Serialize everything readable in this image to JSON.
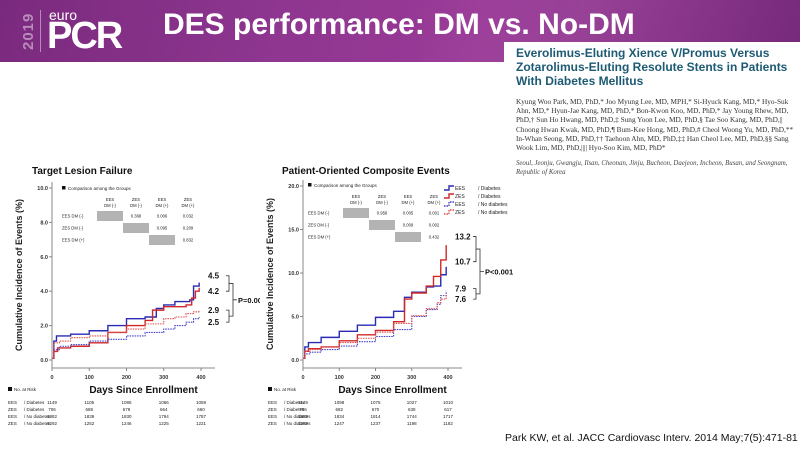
{
  "header": {
    "year": "2019",
    "logo_small": "euro",
    "logo_big": "PCR",
    "title": "DES performance: DM vs. No-DM",
    "brand_color": "#8a3490"
  },
  "paper": {
    "title": "Everolimus-Eluting Xience V/Promus Versus Zotarolimus-Eluting Resolute Stents in Patients With Diabetes Mellitus",
    "authors": "Kyung Woo Park, MD, PhD,* Joo Myung Lee, MD, MPH,* Si-Hyuck Kang, MD,* Hyo-Suk Ahn, MD,* Hyun-Jae Kang, MD, PhD,* Bon-Kwon Koo, MD, PhD,* Jay Young Rhew, MD, PhD,† Sun Ho Hwang, MD, PhD,‡ Sung Yoon Lee, MD, PhD,§ Tae Soo Kang, MD, PhD,|| Choong Hwan Kwak, MD, PhD,¶ Bum-Kee Hong, MD, PhD,# Cheol Woong Yu, MD, PhD,** In-Whan Seong, MD, PhD,†† Taehoon Ahn, MD, PhD,‡‡ Han Cheol Lee, MD, PhD,§§ Sang Wook Lim, MD, PhD,|||| Hyo-Soo Kim, MD, PhD*",
    "affiliation": "Seoul, Jeonju, Gwangju, Ilsan, Cheonan, Jinju, Bucheon, Daejeon, Incheon, Busan, and Seongnam, Republic of Korea"
  },
  "citation": "Park KW, et al. JACC Cardiovasc Interv. 2014 May;7(5):471-81",
  "chart_data": [
    {
      "type": "line",
      "title": "Target Lesion Failure",
      "xlabel": "Days Since Enrollment",
      "ylabel": "Cumulative Incidence of Events (%)",
      "xlim": [
        0,
        400
      ],
      "ylim": [
        0,
        10
      ],
      "x_ticks": [
        "0",
        "100",
        "200",
        "300",
        "400"
      ],
      "y_ticks": [
        "0.0",
        "2.0",
        "4.0",
        "6.0",
        "8.0",
        "10.0"
      ],
      "y_tick_values": [
        0,
        2,
        4,
        6,
        8,
        10
      ],
      "series": [
        {
          "name": "EES / Diabetes",
          "color": "#2a2ab4",
          "dashed": false,
          "x": [
            0,
            5,
            12,
            50,
            100,
            150,
            200,
            250,
            280,
            300,
            330,
            350,
            370,
            380,
            395
          ],
          "y": [
            0.1,
            1.1,
            1.4,
            1.5,
            1.7,
            2.0,
            2.4,
            2.5,
            3.0,
            3.2,
            3.4,
            3.4,
            3.5,
            4.3,
            4.5
          ]
        },
        {
          "name": "ZES / Diabetes",
          "color": "#d02828",
          "dashed": false,
          "x": [
            0,
            5,
            15,
            50,
            100,
            150,
            200,
            250,
            270,
            300,
            330,
            360,
            375,
            385,
            395
          ],
          "y": [
            0.1,
            0.5,
            0.7,
            0.8,
            1.0,
            1.6,
            2.0,
            2.3,
            2.9,
            3.1,
            3.1,
            3.2,
            3.6,
            4.0,
            4.2
          ]
        },
        {
          "name": "EES / No diabetes",
          "color": "#4040c8",
          "dashed": true,
          "x": [
            0,
            5,
            20,
            50,
            100,
            150,
            200,
            250,
            300,
            330,
            360,
            380,
            395
          ],
          "y": [
            0.1,
            0.6,
            0.8,
            0.9,
            1.1,
            1.2,
            1.4,
            1.6,
            1.8,
            2.0,
            2.2,
            2.4,
            2.5
          ]
        },
        {
          "name": "ZES / No diabetes",
          "color": "#e05050",
          "dashed": true,
          "x": [
            0,
            5,
            20,
            50,
            100,
            150,
            200,
            250,
            300,
            330,
            360,
            380,
            395
          ],
          "y": [
            0.1,
            1.0,
            1.1,
            1.3,
            1.4,
            1.6,
            1.8,
            2.1,
            2.4,
            2.5,
            2.7,
            2.8,
            2.9
          ]
        }
      ],
      "end_labels": [
        "4.5",
        "4.2",
        "2.9",
        "2.5"
      ],
      "p_value": "P=0.004",
      "comparison": {
        "title": "Comparison among the Groups",
        "col_headers": [
          [
            "EES",
            "DM (-)"
          ],
          [
            "ZES",
            "DM (-)"
          ],
          [
            "EES",
            "DM (+)"
          ],
          [
            "ZES",
            "DM (+)"
          ]
        ],
        "rows": [
          {
            "label": "EES DM (-)",
            "values": [
              "",
              "0.368",
              "0.006",
              "0.032"
            ]
          },
          {
            "label": "ZES DM (-)",
            "values": [
              "",
              "",
              "0.095",
              "0.209"
            ]
          },
          {
            "label": "EES DM (+)",
            "values": [
              "",
              "",
              "",
              "0.832"
            ]
          }
        ]
      },
      "risk_table": {
        "title": "No. at Risk",
        "rows": [
          {
            "stent": "EES",
            "group": "/ Diabetes",
            "values": [
              "1149",
              "1105",
              "1095",
              "1066",
              "1059"
            ]
          },
          {
            "stent": "ZES",
            "group": "/ Diabetes",
            "values": [
              "706",
              "688",
              "679",
              "664",
              "660"
            ]
          },
          {
            "stent": "EES",
            "group": "/ No diabetes",
            "values": [
              "1882",
              "1839",
              "1830",
              "1794",
              "1787"
            ]
          },
          {
            "stent": "ZES",
            "group": "/ No diabetes",
            "values": [
              "1292",
              "1252",
              "1246",
              "1225",
              "1221"
            ]
          }
        ]
      }
    },
    {
      "type": "line",
      "title": "Patient-Oriented Composite Events",
      "xlabel": "Days Since Enrollment",
      "ylabel": "Cumulative Incidence of Events (%)",
      "xlim": [
        0,
        400
      ],
      "ylim": [
        0,
        20
      ],
      "x_ticks": [
        "0",
        "100",
        "200",
        "300",
        "400"
      ],
      "y_ticks": [
        "0.0",
        "5.0",
        "10.0",
        "15.0",
        "20.0"
      ],
      "y_tick_values": [
        0,
        5,
        10,
        15,
        20
      ],
      "legend": {
        "position": "top-right",
        "entries": [
          "EES / Diabetes",
          "ZES / Diabetes",
          "EES / No diabetes",
          "ZES / No diabetes"
        ]
      },
      "series": [
        {
          "name": "EES / Diabetes",
          "color": "#2a2ab4",
          "dashed": false,
          "x": [
            0,
            5,
            15,
            50,
            100,
            150,
            200,
            250,
            280,
            300,
            340,
            360,
            380,
            395
          ],
          "y": [
            0.2,
            1.5,
            2.0,
            2.6,
            3.3,
            4.0,
            4.9,
            5.6,
            7.2,
            7.8,
            8.4,
            8.5,
            9.8,
            10.7
          ]
        },
        {
          "name": "ZES / Diabetes",
          "color": "#d02828",
          "dashed": false,
          "x": [
            0,
            5,
            15,
            50,
            100,
            150,
            200,
            250,
            280,
            300,
            340,
            360,
            380,
            395
          ],
          "y": [
            0.2,
            1.0,
            1.3,
            1.5,
            2.2,
            2.9,
            3.4,
            4.4,
            7.0,
            7.7,
            8.5,
            9.6,
            11.5,
            13.2
          ]
        },
        {
          "name": "EES / No diabetes",
          "color": "#4040c8",
          "dashed": true,
          "x": [
            0,
            5,
            20,
            50,
            100,
            150,
            200,
            250,
            300,
            340,
            370,
            380,
            395
          ],
          "y": [
            0.2,
            0.7,
            0.9,
            1.2,
            1.6,
            2.1,
            2.7,
            3.5,
            5.0,
            5.8,
            6.4,
            7.4,
            7.9
          ]
        },
        {
          "name": "ZES / No diabetes",
          "color": "#e05050",
          "dashed": true,
          "x": [
            0,
            5,
            20,
            50,
            100,
            150,
            200,
            250,
            300,
            340,
            370,
            380,
            395
          ],
          "y": [
            0.2,
            1.0,
            1.2,
            1.5,
            2.0,
            2.5,
            3.2,
            4.2,
            5.1,
            5.9,
            6.6,
            7.0,
            7.6
          ]
        }
      ],
      "end_labels": [
        "13.2",
        "10.7",
        "7.9",
        "7.6"
      ],
      "p_value": "P<0.001",
      "comparison": {
        "title": "Comparison among the Groups",
        "col_headers": [
          [
            "EES",
            "DM (-)"
          ],
          [
            "ZES",
            "DM (-)"
          ],
          [
            "EES",
            "DM (+)"
          ],
          [
            "ZES",
            "DM (+)"
          ]
        ],
        "rows": [
          {
            "label": "EES DM (-)",
            "values": [
              "",
              "0.958",
              "0.005",
              "0.001"
            ]
          },
          {
            "label": "ZES DM (-)",
            "values": [
              "",
              "",
              "0.009",
              "0.002"
            ]
          },
          {
            "label": "EES DM (+)",
            "values": [
              "",
              "",
              "",
              "0.432"
            ]
          }
        ]
      },
      "risk_table": {
        "title": "No. at Risk",
        "rows": [
          {
            "stent": "EES",
            "group": "/ Diabetes",
            "values": [
              "1149",
              "1098",
              "1075",
              "1027",
              "1010"
            ]
          },
          {
            "stent": "ZES",
            "group": "/ Diabetes",
            "values": [
              "706",
              "682",
              "670",
              "638",
              "617"
            ]
          },
          {
            "stent": "EES",
            "group": "/ No diabetes",
            "values": [
              "1882",
              "1834",
              "1814",
              "1744",
              "1717"
            ]
          },
          {
            "stent": "ZES",
            "group": "/ No diabetes",
            "values": [
              "1292",
              "1247",
              "1237",
              "1198",
              "1182"
            ]
          }
        ]
      }
    }
  ]
}
